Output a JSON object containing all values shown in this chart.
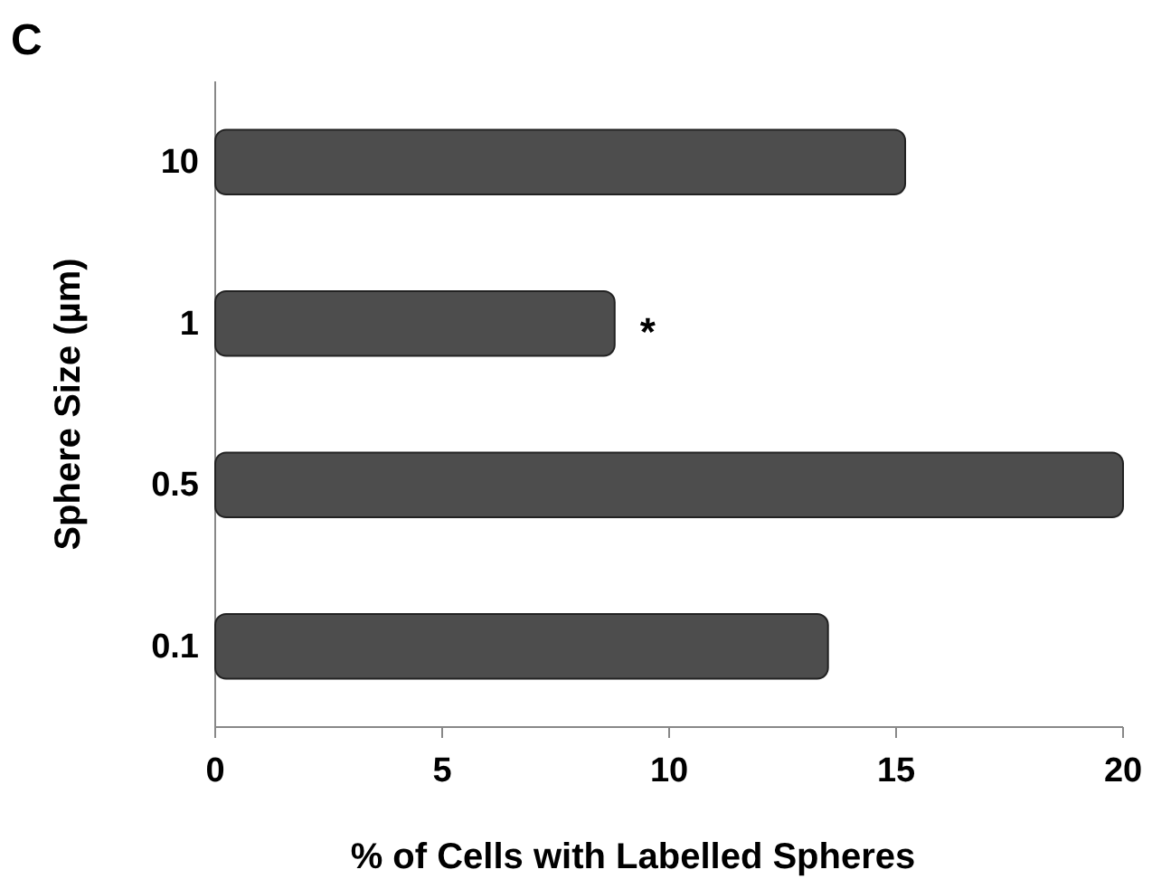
{
  "chart_data": {
    "type": "bar",
    "orientation": "horizontal",
    "title": "C",
    "xlabel": "% of Cells with Labelled Spheres",
    "ylabel": "Sphere Size (µm)",
    "categories": [
      "10",
      "1",
      "0.5",
      "0.1"
    ],
    "values": [
      15.2,
      8.8,
      20,
      13.5
    ],
    "color": "#4d4d4d",
    "xlim": [
      0,
      20
    ],
    "xticks": [
      0,
      5,
      10,
      15,
      20
    ],
    "annotations": [
      {
        "text": "*",
        "x": 8.8,
        "y": "1"
      }
    ]
  }
}
